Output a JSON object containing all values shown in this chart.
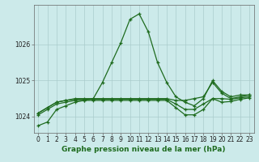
{
  "xlabel": "Graphe pression niveau de la mer (hPa)",
  "ylabel": "",
  "background_color": "#cceaea",
  "grid_color": "#aacccc",
  "line_color": "#1e6b1e",
  "series": [
    [
      1023.75,
      1023.85,
      1024.2,
      1024.3,
      1024.4,
      1024.45,
      1024.5,
      1024.95,
      1025.5,
      1026.05,
      1026.7,
      1026.85,
      1026.35,
      1025.5,
      1024.95,
      1024.55,
      1024.4,
      1024.3,
      1024.5,
      1025.0,
      1024.7,
      1024.55,
      1024.6,
      1024.6
    ],
    [
      1024.1,
      1024.25,
      1024.4,
      1024.45,
      1024.5,
      1024.5,
      1024.5,
      1024.5,
      1024.5,
      1024.5,
      1024.5,
      1024.5,
      1024.5,
      1024.5,
      1024.5,
      1024.45,
      1024.45,
      1024.5,
      1024.55,
      1024.95,
      1024.65,
      1024.5,
      1024.55,
      1024.6
    ],
    [
      1024.1,
      1024.25,
      1024.4,
      1024.45,
      1024.48,
      1024.48,
      1024.48,
      1024.48,
      1024.48,
      1024.48,
      1024.48,
      1024.48,
      1024.48,
      1024.48,
      1024.48,
      1024.35,
      1024.2,
      1024.2,
      1024.35,
      1024.5,
      1024.5,
      1024.48,
      1024.52,
      1024.55
    ],
    [
      1024.05,
      1024.2,
      1024.35,
      1024.4,
      1024.45,
      1024.45,
      1024.45,
      1024.45,
      1024.45,
      1024.45,
      1024.45,
      1024.45,
      1024.45,
      1024.45,
      1024.45,
      1024.25,
      1024.05,
      1024.05,
      1024.2,
      1024.5,
      1024.4,
      1024.42,
      1024.48,
      1024.52
    ]
  ],
  "ylim": [
    1023.55,
    1027.1
  ],
  "yticks": [
    1024,
    1025,
    1026
  ],
  "xticks": [
    0,
    1,
    2,
    3,
    4,
    5,
    6,
    7,
    8,
    9,
    10,
    11,
    12,
    13,
    14,
    15,
    16,
    17,
    18,
    19,
    20,
    21,
    22,
    23
  ],
  "marker": "+",
  "markersize": 3.5,
  "linewidth": 0.9,
  "tick_fontsize": 5.5,
  "xlabel_fontsize": 6.5
}
